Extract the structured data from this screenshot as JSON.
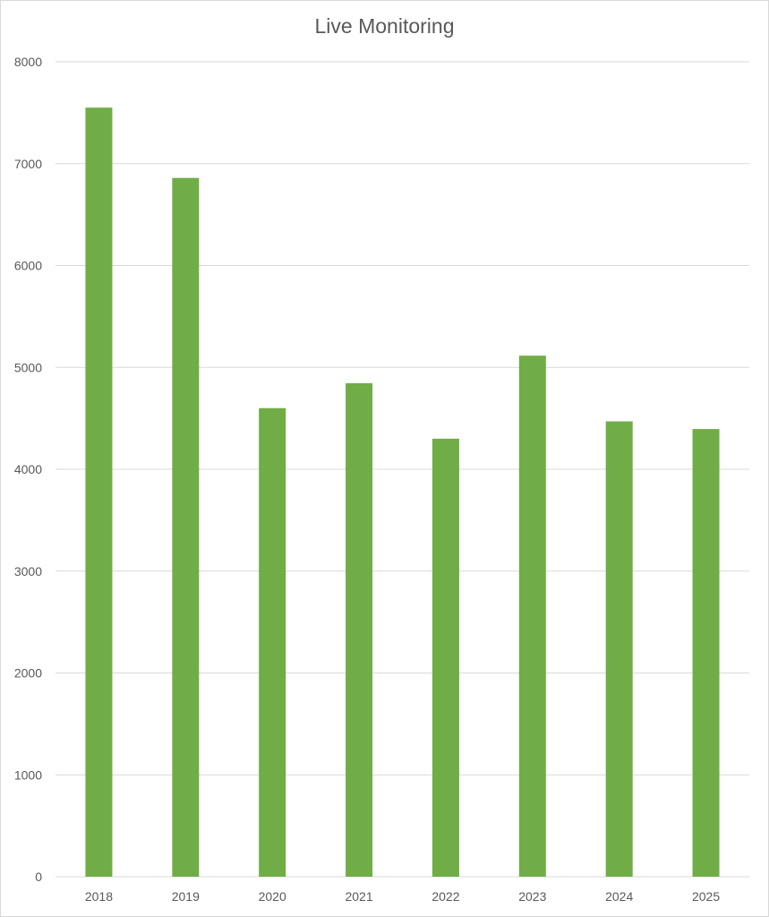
{
  "chart_data": {
    "type": "bar",
    "title": "Live Monitoring",
    "categories": [
      "2018",
      "2019",
      "2020",
      "2021",
      "2022",
      "2023",
      "2024",
      "2025"
    ],
    "values": [
      7550,
      6860,
      4600,
      4845,
      4300,
      5115,
      4470,
      4395
    ],
    "ylim": [
      0,
      8000
    ],
    "yticks": [
      0,
      1000,
      2000,
      3000,
      4000,
      5000,
      6000,
      7000,
      8000
    ],
    "xlabel": "",
    "ylabel": "",
    "grid": true,
    "legend": "none",
    "bar_color": "#70ad47",
    "grid_color": "#d9d9d9",
    "text_color": "#595959"
  }
}
